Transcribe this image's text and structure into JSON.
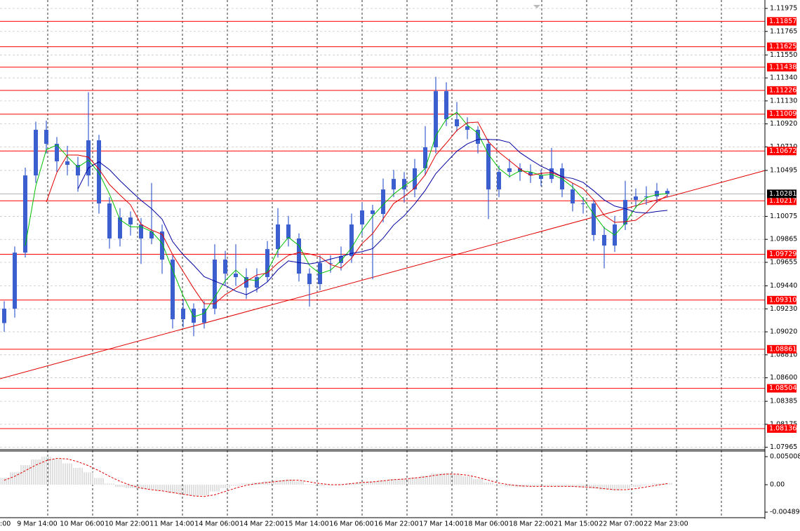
{
  "chart_data": {
    "type": "candlestick",
    "ylim": [
      1.0795,
      1.12052
    ],
    "yticks": [
      1.11975,
      1.11765,
      {
        "value": 1.1155,
        "label": "1.11550"
      },
      {
        "value": 1.1134,
        "label": "1.11340"
      },
      {
        "value": 1.1113,
        "label": "1.11130"
      },
      {
        "value": 1.1092,
        "label": "1.10920"
      },
      {
        "value": 1.1071,
        "label": "1.10710"
      },
      1.10495,
      1.10075,
      1.09865,
      1.09655,
      {
        "value": 1.0944,
        "label": "1.09440"
      },
      {
        "value": 1.0923,
        "label": "1.09230"
      },
      {
        "value": 1.0902,
        "label": "1.09020"
      },
      {
        "value": 1.0881,
        "label": "1.08810"
      },
      {
        "value": 1.086,
        "label": "1.08600"
      },
      1.08385,
      1.08175,
      1.07965
    ],
    "grid": true,
    "color": "#3c5fcf",
    "levels": [
      1.11857,
      1.11625,
      1.11438,
      1.11226,
      1.11009,
      1.10672,
      1.10217,
      1.09729,
      {
        "value": 1.0931,
        "label": "1.09310"
      },
      1.08861,
      1.08504,
      1.08136
    ],
    "level_color": "#ff0000",
    "current": 1.10281,
    "trendline": [
      1.08591,
      1.10494
    ],
    "time_labels": [
      ":00",
      "9 Mar 14:00",
      "10 Mar 06:00",
      "10 Mar 22:00",
      "11 Mar 14:00",
      "14 Mar 06:00",
      "14 Mar 22:00",
      "15 Mar 14:00",
      "16 Mar 06:00",
      "16 Mar 22:00",
      "17 Mar 14:00",
      "18 Mar 06:00",
      "18 Mar 22:00",
      "21 Mar 15:00",
      "22 Mar 07:00",
      "22 Mar 23:00"
    ],
    "ohlc": [
      [
        1.091,
        1.093,
        1.0902,
        1.09232
      ],
      [
        1.09232,
        1.098,
        1.0915,
        1.09744
      ],
      [
        1.09744,
        1.1052,
        1.097,
        1.10449
      ],
      [
        1.10449,
        1.1094,
        1.1038,
        1.10866
      ],
      [
        1.10866,
        1.1095,
        1.1065,
        1.10738
      ],
      [
        1.10738,
        1.108,
        1.1048,
        1.10578
      ],
      [
        1.10578,
        1.1072,
        1.1045,
        1.10546
      ],
      [
        1.10546,
        1.1062,
        1.103,
        1.10449
      ],
      [
        1.10449,
        1.1121,
        1.1035,
        1.1077
      ],
      [
        1.1077,
        1.1082,
        1.101,
        1.10193
      ],
      [
        1.10193,
        1.1025,
        1.0978,
        1.09873
      ],
      [
        1.09873,
        1.1015,
        1.098,
        1.10065
      ],
      [
        1.10065,
        1.1012,
        1.099,
        1.10001
      ],
      [
        1.10001,
        1.1006,
        1.0964,
        1.09873
      ],
      [
        1.09873,
        1.1038,
        1.0982,
        1.09937
      ],
      [
        1.09937,
        1.1,
        1.0955,
        1.0968
      ],
      [
        1.0968,
        1.0972,
        1.0905,
        1.09135
      ],
      [
        1.09135,
        1.0932,
        1.0906,
        1.09232
      ],
      [
        1.09232,
        1.0928,
        1.0898,
        1.09103
      ],
      [
        1.09103,
        1.093,
        1.0905,
        1.09232
      ],
      [
        1.09232,
        1.0982,
        1.0918,
        1.0968
      ],
      [
        1.0968,
        1.0976,
        1.0945,
        1.09552
      ],
      [
        1.09552,
        1.0982,
        1.0944,
        1.0952
      ],
      [
        1.0952,
        1.096,
        1.0932,
        1.09424
      ],
      [
        1.09424,
        1.096,
        1.0938,
        1.0952
      ],
      [
        1.0952,
        1.0985,
        1.0948,
        1.09776
      ],
      [
        1.09776,
        1.1015,
        1.097,
        1.10001
      ],
      [
        1.10001,
        1.1008,
        1.098,
        1.09873
      ],
      [
        1.09873,
        1.0992,
        1.0948,
        1.09552
      ],
      [
        1.09552,
        1.096,
        1.0925,
        1.09456
      ],
      [
        1.09456,
        1.0972,
        1.094,
        1.09648
      ],
      [
        1.09648,
        1.0972,
        1.0956,
        1.09648
      ],
      [
        1.09648,
        1.098,
        1.0958,
        1.09712
      ],
      [
        1.09712,
        1.101,
        1.0965,
        1.10001
      ],
      [
        1.10001,
        1.102,
        1.099,
        1.10129
      ],
      [
        1.10129,
        1.1018,
        1.095,
        1.10097
      ],
      [
        1.10097,
        1.1042,
        1.1002,
        1.10321
      ],
      [
        1.10321,
        1.105,
        1.1025,
        1.10417
      ],
      [
        1.10417,
        1.1048,
        1.102,
        1.10321
      ],
      [
        1.10321,
        1.106,
        1.1025,
        1.10514
      ],
      [
        1.10514,
        1.109,
        1.1045,
        1.10706
      ],
      [
        1.10706,
        1.1135,
        1.1065,
        1.11219
      ],
      [
        1.11219,
        1.113,
        1.109,
        1.10962
      ],
      [
        1.10962,
        1.1112,
        1.1085,
        1.10898
      ],
      [
        1.10898,
        1.1098,
        1.1078,
        1.10866
      ],
      [
        1.10866,
        1.109,
        1.1065,
        1.10738
      ],
      [
        1.10738,
        1.1078,
        1.1005,
        1.10321
      ],
      [
        1.10321,
        1.1054,
        1.1025,
        1.10481
      ],
      [
        1.10481,
        1.106,
        1.1043,
        1.10514
      ],
      [
        1.10514,
        1.1056,
        1.104,
        1.10481
      ],
      [
        1.10481,
        1.1055,
        1.1038,
        1.10449
      ],
      [
        1.10449,
        1.105,
        1.1035,
        1.10417
      ],
      [
        1.10417,
        1.107,
        1.1038,
        1.10514
      ],
      [
        1.10514,
        1.1056,
        1.1025,
        1.10321
      ],
      [
        1.10321,
        1.1038,
        1.1012,
        1.10193
      ],
      [
        1.10193,
        1.1025,
        1.101,
        1.10193
      ],
      [
        1.10193,
        1.1023,
        1.0985,
        1.09905
      ],
      [
        1.09905,
        1.0998,
        1.096,
        1.09808
      ],
      [
        1.09808,
        1.1008,
        1.0975,
        1.10001
      ],
      [
        1.10001,
        1.104,
        1.0995,
        1.10225
      ],
      [
        1.10225,
        1.1033,
        1.1015,
        1.10257
      ],
      [
        1.10257,
        1.1035,
        1.1018,
        1.10257
      ],
      [
        1.10257,
        1.1038,
        1.102,
        1.10308
      ],
      [
        1.10308,
        1.1033,
        1.1025,
        1.10281
      ]
    ],
    "oscillator": {
      "ylim": [
        -0.00576,
        0.00601
      ],
      "yticks": [
        0.005008,
        {
          "value": 0,
          "label": "0.00"
        },
        -0.004893
      ],
      "hist_color": "#c0c0c0",
      "signal_color": "#e00000",
      "histogram": [
        0.0012,
        0.0022,
        0.0035,
        0.0045,
        0.005,
        0.0046,
        0.0038,
        0.003,
        0.0022,
        0.0012,
        0.0002,
        -0.0004,
        -0.0006,
        -0.0008,
        -0.0009,
        -0.0011,
        -0.0015,
        -0.0018,
        -0.002,
        -0.0019,
        -0.0012,
        -0.0006,
        -0.0002,
        0.0002,
        0.0004,
        0.0006,
        0.0008,
        0.0009,
        0.0006,
        0.0001,
        -0.0002,
        -0.0001,
        0.0001,
        0.0003,
        0.0005,
        0.0006,
        0.0008,
        0.001,
        0.0011,
        0.0013,
        0.0016,
        0.002,
        0.0021,
        0.0019,
        0.0015,
        0.001,
        0.0004,
        -0.0001,
        -0.0003,
        -0.0004,
        -0.0003,
        -0.0002,
        -0.0002,
        -0.0003,
        -0.0004,
        -0.0005,
        -0.0007,
        -0.0009,
        -0.001,
        -0.0007,
        -0.0004,
        -0.0001,
        0.0002,
        0.0003
      ],
      "signal": [
        0.0008,
        0.0015,
        0.0025,
        0.0035,
        0.0043,
        0.0047,
        0.0046,
        0.0041,
        0.0034,
        0.0025,
        0.0015,
        0.0006,
        -0.0001,
        -0.0006,
        -0.0009,
        -0.0011,
        -0.0014,
        -0.0017,
        -0.002,
        -0.0021,
        -0.0018,
        -0.0012,
        -0.0006,
        -0.0001,
        0.0002,
        0.0004,
        0.0006,
        0.0008,
        0.0008,
        0.0005,
        0.0002,
        0,
        0,
        0.0002,
        0.0004,
        0.0005,
        0.0007,
        0.0009,
        0.001,
        0.0012,
        0.0014,
        0.0017,
        0.0019,
        0.0019,
        0.0017,
        0.0013,
        0.0008,
        0.0003,
        0,
        -0.0002,
        -0.0003,
        -0.0003,
        -0.0003,
        -0.0003,
        -0.0003,
        -0.0004,
        -0.0005,
        -0.0007,
        -0.0009,
        -0.0009,
        -0.0007,
        -0.0004,
        -0.0001,
        0.0002
      ]
    }
  }
}
